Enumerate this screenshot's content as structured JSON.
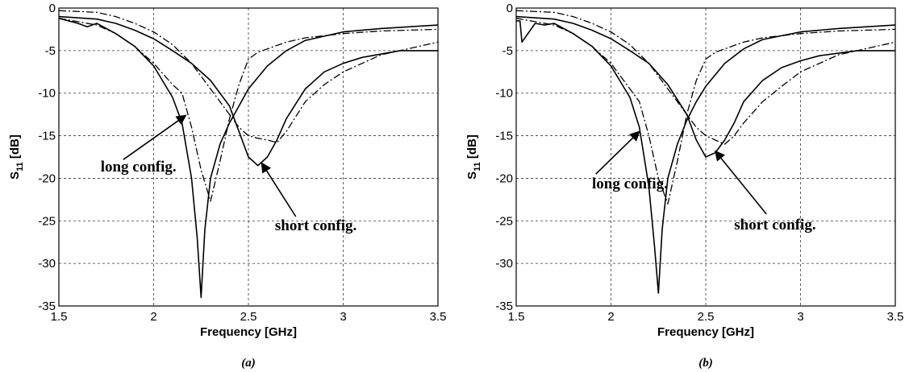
{
  "chart_data": [
    {
      "type": "line",
      "caption": "(a)",
      "xlabel": "Frequency [GHz]",
      "ylabel_main": "S",
      "ylabel_sub": "11",
      "ylabel_tail": " [dB]",
      "xlim": [
        1.5,
        3.5
      ],
      "ylim": [
        -35,
        0
      ],
      "xticks": [
        1.5,
        2,
        2.5,
        3,
        3.5
      ],
      "xtick_labels": [
        "1.5",
        "2",
        "2.5",
        "3",
        "3.5"
      ],
      "yticks": [
        0,
        -5,
        -10,
        -15,
        -20,
        -25,
        -30,
        -35
      ],
      "ytick_labels": [
        "0",
        "-5",
        "-10",
        "-15",
        "-20",
        "-25",
        "-30",
        "-35"
      ],
      "grid": true,
      "annotations": [
        {
          "text": "long config.",
          "text_x": 1.72,
          "text_y": -19.2,
          "arrow_from": [
            1.84,
            -17.8
          ],
          "arrow_to": [
            2.17,
            -12.6
          ]
        },
        {
          "text": "short config.",
          "text_x": 2.64,
          "text_y": -26.1,
          "arrow_from": [
            2.75,
            -24.5
          ],
          "arrow_to": [
            2.57,
            -18.2
          ]
        }
      ],
      "series": [
        {
          "style": "solid",
          "x": [
            1.5,
            1.6,
            1.65,
            1.7,
            1.8,
            1.9,
            2.0,
            2.1,
            2.15,
            2.2,
            2.23,
            2.25,
            2.27,
            2.3,
            2.35,
            2.4,
            2.45,
            2.5,
            2.6,
            2.7,
            2.8,
            3.0,
            3.2,
            3.5
          ],
          "y": [
            -1.2,
            -1.8,
            -2.2,
            -1.8,
            -3.0,
            -4.5,
            -6.8,
            -10.5,
            -13.5,
            -20.0,
            -27.0,
            -34.0,
            -26.0,
            -20.0,
            -16.0,
            -13.5,
            -11.5,
            -9.5,
            -6.8,
            -5.0,
            -3.8,
            -2.8,
            -2.4,
            -2.0
          ]
        },
        {
          "style": "solid",
          "x": [
            1.5,
            1.7,
            1.8,
            1.9,
            2.0,
            2.1,
            2.2,
            2.3,
            2.4,
            2.45,
            2.5,
            2.55,
            2.6,
            2.65,
            2.7,
            2.8,
            2.9,
            3.0,
            3.1,
            3.3,
            3.5
          ],
          "y": [
            -1.0,
            -1.3,
            -1.8,
            -2.6,
            -3.6,
            -5.0,
            -6.5,
            -8.5,
            -11.5,
            -14.5,
            -17.5,
            -18.5,
            -17.5,
            -15.5,
            -13.0,
            -9.5,
            -7.5,
            -6.5,
            -5.8,
            -5.0,
            -5.0
          ]
        },
        {
          "style": "dashdot",
          "x": [
            1.5,
            1.7,
            1.8,
            1.9,
            2.0,
            2.1,
            2.15,
            2.2,
            2.25,
            2.3,
            2.35,
            2.4,
            2.45,
            2.5,
            2.55,
            2.6,
            2.7,
            2.8,
            3.0,
            3.2,
            3.5
          ],
          "y": [
            -1.2,
            -2.0,
            -3.0,
            -4.5,
            -6.5,
            -9.0,
            -10.0,
            -14.0,
            -19.0,
            -22.7,
            -18.0,
            -13.0,
            -9.0,
            -6.0,
            -5.2,
            -4.8,
            -4.0,
            -3.5,
            -3.0,
            -2.7,
            -2.5
          ]
        },
        {
          "style": "dashdot",
          "x": [
            1.5,
            1.7,
            1.8,
            1.9,
            2.0,
            2.1,
            2.2,
            2.3,
            2.4,
            2.45,
            2.5,
            2.55,
            2.6,
            2.65,
            2.7,
            2.8,
            2.9,
            3.0,
            3.2,
            3.5
          ],
          "y": [
            -0.3,
            -0.5,
            -1.0,
            -1.8,
            -2.8,
            -4.3,
            -6.5,
            -9.5,
            -12.5,
            -14.0,
            -15.0,
            -15.3,
            -15.5,
            -15.8,
            -14.5,
            -11.0,
            -9.0,
            -7.5,
            -5.5,
            -4.0
          ]
        }
      ]
    },
    {
      "type": "line",
      "caption": "(b)",
      "xlabel": "Frequency [GHz]",
      "ylabel_main": "S",
      "ylabel_sub": "11",
      "ylabel_tail": " [dB]",
      "xlim": [
        1.5,
        3.5
      ],
      "ylim": [
        -35,
        0
      ],
      "xticks": [
        1.5,
        2,
        2.5,
        3,
        3.5
      ],
      "xtick_labels": [
        "1.5",
        "2",
        "2.5",
        "3",
        "3.5"
      ],
      "yticks": [
        0,
        -5,
        -10,
        -15,
        -20,
        -25,
        -30,
        -35
      ],
      "ytick_labels": [
        "0",
        "-5",
        "-10",
        "-15",
        "-20",
        "-25",
        "-30",
        "-35"
      ],
      "grid": true,
      "annotations": [
        {
          "text": "long config.",
          "text_x": 1.9,
          "text_y": -21.2,
          "arrow_from": [
            1.92,
            -19.5
          ],
          "arrow_to": [
            2.15,
            -14.5
          ]
        },
        {
          "text": "short config.",
          "text_x": 2.65,
          "text_y": -26.0,
          "arrow_from": [
            2.82,
            -24.2
          ],
          "arrow_to": [
            2.55,
            -16.8
          ]
        }
      ],
      "series": [
        {
          "style": "solid",
          "x": [
            1.5,
            1.52,
            1.53,
            1.6,
            1.65,
            1.7,
            1.8,
            1.9,
            2.0,
            2.1,
            2.15,
            2.2,
            2.23,
            2.25,
            2.27,
            2.3,
            2.35,
            2.4,
            2.45,
            2.5,
            2.6,
            2.7,
            2.8,
            3.0,
            3.2,
            3.5
          ],
          "y": [
            -1.5,
            -1.5,
            -4.0,
            -1.8,
            -2.0,
            -1.8,
            -3.0,
            -4.5,
            -6.8,
            -10.5,
            -14.0,
            -21.0,
            -28.0,
            -33.5,
            -26.0,
            -20.0,
            -16.0,
            -13.2,
            -11.0,
            -9.2,
            -6.5,
            -4.8,
            -3.7,
            -2.8,
            -2.4,
            -2.0
          ]
        },
        {
          "style": "solid",
          "x": [
            1.5,
            1.7,
            1.8,
            1.9,
            2.0,
            2.1,
            2.2,
            2.3,
            2.4,
            2.45,
            2.5,
            2.55,
            2.6,
            2.65,
            2.7,
            2.8,
            2.9,
            3.0,
            3.1,
            3.3,
            3.5
          ],
          "y": [
            -1.0,
            -1.3,
            -1.8,
            -2.6,
            -3.6,
            -5.0,
            -6.5,
            -9.0,
            -12.5,
            -15.5,
            -17.5,
            -17.0,
            -15.5,
            -13.5,
            -11.0,
            -8.5,
            -7.0,
            -6.2,
            -5.6,
            -5.0,
            -5.0
          ]
        },
        {
          "style": "dashdot",
          "x": [
            1.5,
            1.7,
            1.8,
            1.9,
            2.0,
            2.1,
            2.15,
            2.2,
            2.25,
            2.3,
            2.35,
            2.4,
            2.45,
            2.5,
            2.55,
            2.6,
            2.7,
            2.8,
            3.0,
            3.2,
            3.5
          ],
          "y": [
            -1.2,
            -2.0,
            -3.0,
            -4.5,
            -6.5,
            -9.5,
            -11.0,
            -15.0,
            -20.0,
            -23.0,
            -18.0,
            -12.5,
            -8.5,
            -6.0,
            -5.2,
            -4.8,
            -4.0,
            -3.5,
            -3.0,
            -2.7,
            -2.5
          ]
        },
        {
          "style": "dashdot",
          "x": [
            1.5,
            1.7,
            1.8,
            1.9,
            2.0,
            2.1,
            2.2,
            2.3,
            2.4,
            2.45,
            2.5,
            2.55,
            2.6,
            2.65,
            2.7,
            2.8,
            2.9,
            3.0,
            3.2,
            3.5
          ],
          "y": [
            -0.3,
            -0.5,
            -1.0,
            -1.8,
            -2.8,
            -4.3,
            -6.5,
            -9.5,
            -12.5,
            -14.0,
            -15.0,
            -15.5,
            -16.0,
            -15.0,
            -13.5,
            -11.0,
            -9.2,
            -7.5,
            -5.5,
            -4.0
          ]
        }
      ]
    }
  ]
}
